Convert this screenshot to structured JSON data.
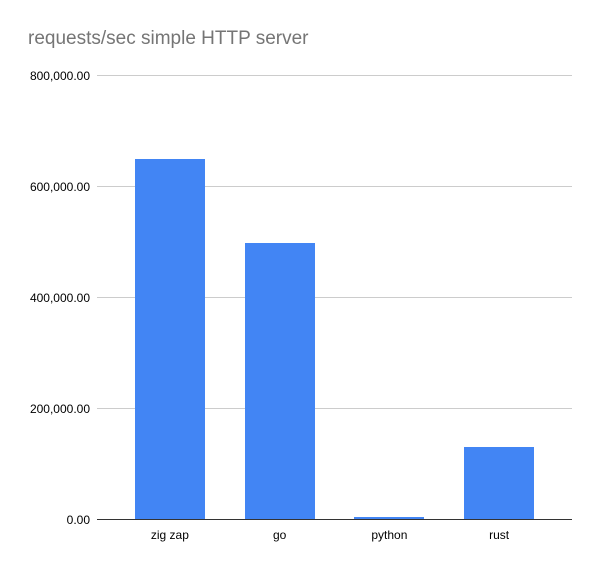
{
  "chart": {
    "title": "requests/sec simple HTTP server"
  },
  "chart_data": {
    "type": "bar",
    "title": "requests/sec simple HTTP server",
    "categories": [
      "zig zap",
      "go",
      "python",
      "rust"
    ],
    "values": [
      650000,
      500000,
      5000,
      131000
    ],
    "xlabel": "",
    "ylabel": "",
    "ylim": [
      0,
      800000
    ],
    "yticks": [
      0,
      200000,
      400000,
      600000,
      800000
    ],
    "ytick_labels": [
      "0.00",
      "200,000.00",
      "400,000.00",
      "600,000.00",
      "800,000.00"
    ],
    "grid": true,
    "legend": "none",
    "colors": {
      "bar": "#4285f4",
      "gridline": "#cccccc",
      "axis_line": "#333333",
      "tick_label": "#000000",
      "title": "#757575",
      "background": "#ffffff"
    }
  }
}
